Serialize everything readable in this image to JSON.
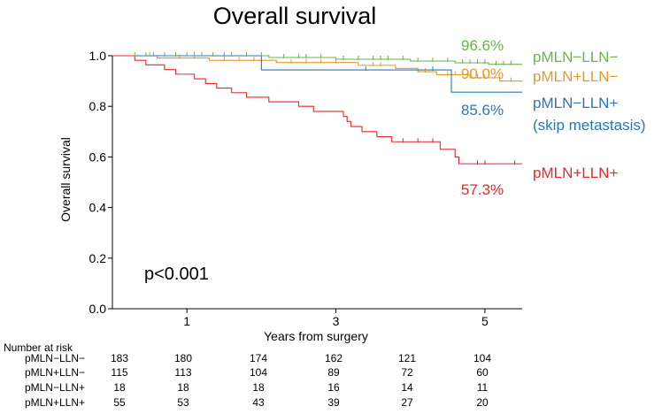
{
  "chart_data": {
    "type": "line",
    "title": "Overall survival",
    "xlabel": "Years from surgery",
    "ylabel": "Overall survival",
    "xlim": [
      0,
      5.5
    ],
    "ylim": [
      0,
      1.0
    ],
    "x_ticks": [
      1,
      3,
      5
    ],
    "x_tick_labels": [
      "1",
      "3",
      "5"
    ],
    "y_ticks": [
      0,
      0.2,
      0.4,
      0.6,
      0.8,
      1.0
    ],
    "y_tick_labels": [
      "0.0",
      "0.2",
      "0.4",
      "0.6",
      "0.8",
      "1.0"
    ],
    "annotation": "p<0.001",
    "series": [
      {
        "name": "pMLN−LLN−",
        "label_lines": [
          "pMLN−LLN−"
        ],
        "final_rate": "96.6%",
        "color": "#6ab54a",
        "steps": [
          [
            0,
            1.0
          ],
          [
            2.1,
            0.993
          ],
          [
            3.0,
            0.986
          ],
          [
            4.0,
            0.979
          ],
          [
            4.6,
            0.972
          ],
          [
            5.05,
            0.966
          ],
          [
            5.5,
            0.966
          ]
        ],
        "censor_times": [
          0.3,
          0.45,
          0.55,
          0.7,
          0.85,
          1.0,
          1.1,
          1.2,
          1.35,
          1.5,
          1.6,
          1.8,
          2.0,
          2.3,
          2.5,
          2.6,
          2.8,
          3.1,
          3.3,
          3.5,
          3.6,
          3.7,
          3.9,
          4.1,
          4.3,
          4.5,
          4.7,
          4.8,
          4.9,
          5.0,
          5.15,
          5.25,
          5.35
        ]
      },
      {
        "name": "pMLN+LLN−",
        "label_lines": [
          "pMLN+LLN−"
        ],
        "final_rate": "90.0%",
        "color": "#e39a2c",
        "steps": [
          [
            0,
            1.0
          ],
          [
            0.6,
            0.991
          ],
          [
            1.3,
            0.982
          ],
          [
            2.2,
            0.973
          ],
          [
            3.3,
            0.962
          ],
          [
            3.8,
            0.95
          ],
          [
            4.1,
            0.937
          ],
          [
            4.35,
            0.925
          ],
          [
            4.8,
            0.913
          ],
          [
            5.2,
            0.9
          ],
          [
            5.5,
            0.9
          ]
        ],
        "censor_times": [
          0.5,
          0.9,
          1.1,
          1.5,
          1.7,
          1.9,
          2.4,
          2.6,
          2.8,
          3.0,
          3.5,
          3.6,
          4.2,
          4.5,
          4.6,
          4.9,
          5.0,
          5.35
        ]
      },
      {
        "name": "pMLN−LLN+",
        "label_lines": [
          "pMLN−LLN+",
          "(skip metastasis)"
        ],
        "final_rate": "85.6%",
        "color": "#2e75b6",
        "steps": [
          [
            0,
            1.0
          ],
          [
            2.0,
            0.944
          ],
          [
            4.55,
            0.856
          ],
          [
            5.5,
            0.856
          ]
        ],
        "censor_times": [
          3.4,
          4.3
        ]
      },
      {
        "name": "pMLN+LLN+",
        "label_lines": [
          "pMLN+LLN+"
        ],
        "final_rate": "57.3%",
        "color": "#e8282b",
        "steps": [
          [
            0,
            1.0
          ],
          [
            0.3,
            0.982
          ],
          [
            0.45,
            0.964
          ],
          [
            0.7,
            0.945
          ],
          [
            0.85,
            0.927
          ],
          [
            1.1,
            0.909
          ],
          [
            1.25,
            0.89
          ],
          [
            1.4,
            0.872
          ],
          [
            1.6,
            0.854
          ],
          [
            1.8,
            0.836
          ],
          [
            2.1,
            0.818
          ],
          [
            2.5,
            0.8
          ],
          [
            2.7,
            0.78
          ],
          [
            3.1,
            0.76
          ],
          [
            3.15,
            0.74
          ],
          [
            3.2,
            0.72
          ],
          [
            3.35,
            0.7
          ],
          [
            3.55,
            0.68
          ],
          [
            3.75,
            0.66
          ],
          [
            4.4,
            0.63
          ],
          [
            4.6,
            0.6
          ],
          [
            4.65,
            0.573
          ],
          [
            5.5,
            0.573
          ]
        ],
        "censor_times": [
          3.9,
          4.1,
          4.3,
          4.9,
          5.0,
          5.4
        ]
      }
    ]
  },
  "risk_table": {
    "title": "Number  at risk",
    "time_points": [
      0,
      1,
      2,
      3,
      4,
      5
    ],
    "rows": [
      {
        "label": "pMLN−LLN−",
        "values": [
          "183",
          "180",
          "174",
          "162",
          "121",
          "104"
        ]
      },
      {
        "label": "pMLN+LLN−",
        "values": [
          "115",
          "113",
          "104",
          "89",
          "72",
          "60"
        ]
      },
      {
        "label": "pMLN−LLN+",
        "values": [
          "18",
          "18",
          "18",
          "16",
          "14",
          "11"
        ]
      },
      {
        "label": "pMLN+LLN+",
        "values": [
          "55",
          "53",
          "43",
          "39",
          "27",
          "20"
        ]
      }
    ]
  }
}
